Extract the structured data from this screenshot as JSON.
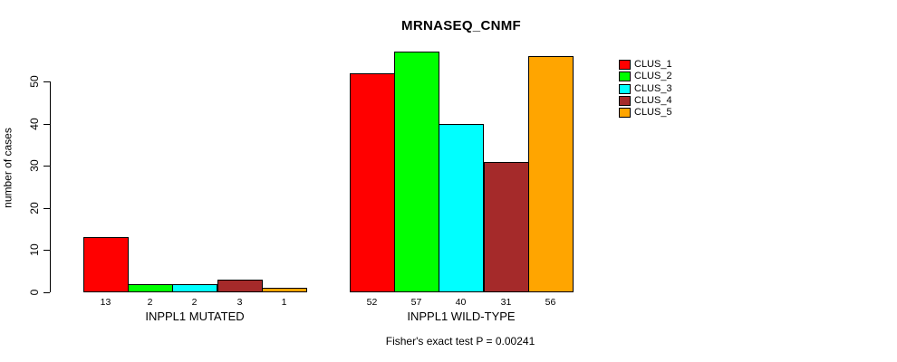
{
  "chart_data": {
    "type": "bar",
    "title": "MRNASEQ_CNMF",
    "ylabel": "number of cases",
    "xlabel": "",
    "ylim": [
      0,
      50
    ],
    "yticks": [
      0,
      10,
      20,
      30,
      40,
      50
    ],
    "grid": false,
    "legend_position": "top-right",
    "series": [
      {
        "name": "CLUS_1",
        "color": "#FF0000"
      },
      {
        "name": "CLUS_2",
        "color": "#00FF00"
      },
      {
        "name": "CLUS_3",
        "color": "#00FFFF"
      },
      {
        "name": "CLUS_4",
        "color": "#A52A2A"
      },
      {
        "name": "CLUS_5",
        "color": "#FFA500"
      }
    ],
    "groups": [
      {
        "label": "INPPL1 MUTATED",
        "values": [
          13,
          2,
          2,
          3,
          1
        ]
      },
      {
        "label": "INPPL1 WILD-TYPE",
        "values": [
          52,
          57,
          40,
          31,
          56
        ]
      }
    ],
    "footnote": "Fisher's exact test P = 0.00241"
  }
}
